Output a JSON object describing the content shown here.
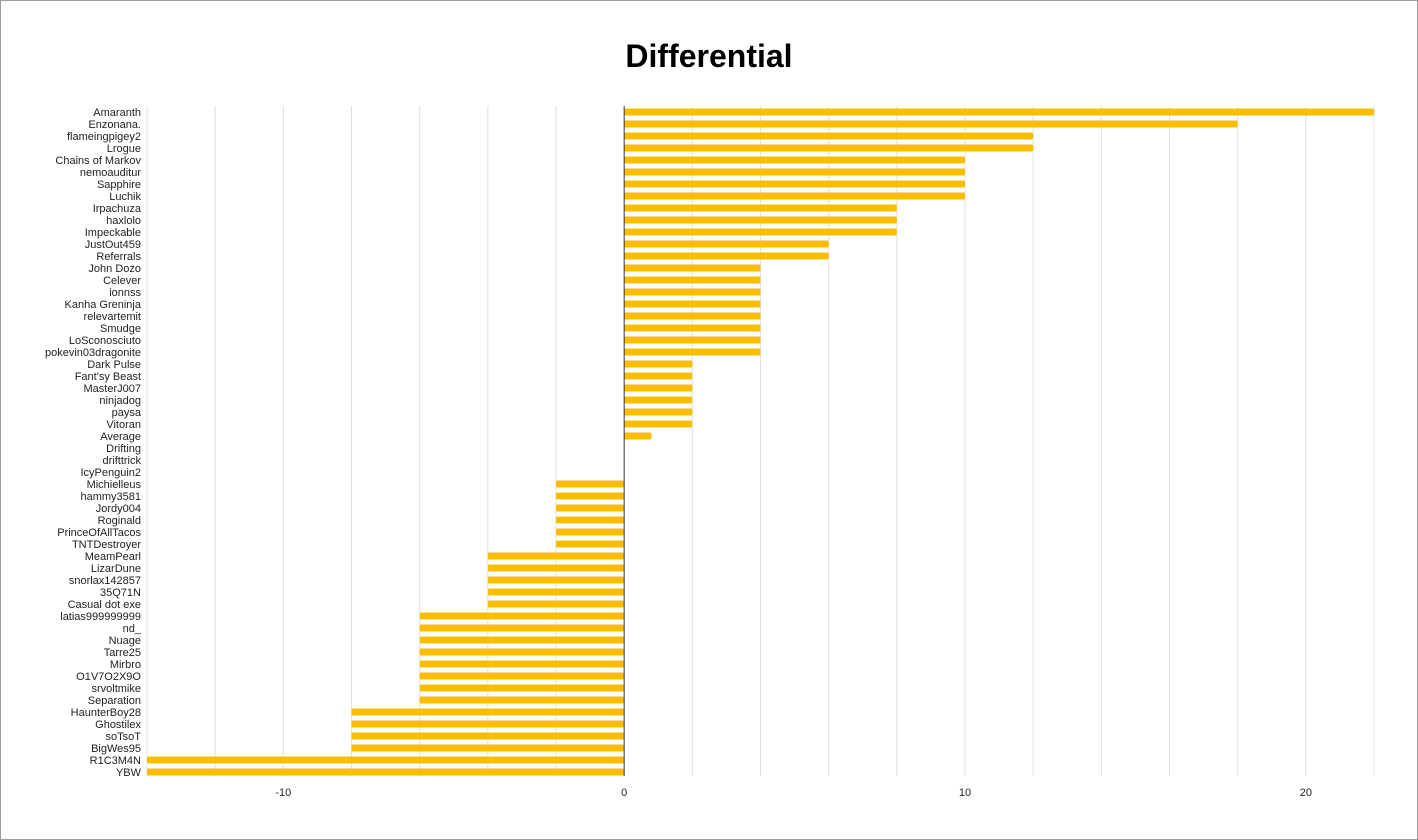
{
  "chart_data": {
    "type": "bar",
    "orientation": "horizontal",
    "title": "Differential",
    "xlabel": "",
    "ylabel": "",
    "xlim": [
      -14,
      22
    ],
    "x_ticks": [
      -10,
      0,
      10,
      20
    ],
    "gridlines_every": 2,
    "grid": true,
    "legend": "none",
    "bar_color": "#fbbc04",
    "categories": [
      "Amaranth",
      "Enzonana.",
      "flameingpigey2",
      "Lrogue",
      "Chains of Markov",
      "nemoauditur",
      "Sapphire",
      "Luchik",
      "Irpachuza",
      "haxlolo",
      "Impeckable",
      "JustOut459",
      "Referrals",
      "John Dozo",
      "Celever",
      "ionnss",
      "Kanha Greninja",
      "relevartemit",
      "Smudge",
      "LoSconosciuto",
      "pokevin03dragonite",
      "Dark Pulse",
      "Fant'sy Beast",
      "MasterJ007",
      "ninjadog",
      "paysa",
      "Vitoran",
      "Average",
      "Drifting",
      "drifttrick",
      "IcyPenguin2",
      "Michielleus",
      "hammy3581",
      "Jordy004",
      "Roginald",
      "PrinceOfAllTacos",
      "TNTDestroyer",
      "MeamPearl",
      "LizarDune",
      "snorlax142857",
      "35Q71N",
      "Casual dot exe",
      "latias999999999",
      "nd_",
      "Nuage",
      "Tarre25",
      "Mirbro",
      "O1V7O2X9O",
      "srvoltmike",
      "Separation",
      "HaunterBoy28",
      "Ghostilex",
      "soTsoT",
      "BigWes95",
      "R1C3M4N",
      "YBW"
    ],
    "values": [
      22,
      18,
      12,
      12,
      10,
      10,
      10,
      10,
      8,
      8,
      8,
      6,
      6,
      4,
      4,
      4,
      4,
      4,
      4,
      4,
      4,
      2,
      2,
      2,
      2,
      2,
      2,
      0.8,
      0,
      0,
      0,
      -2,
      -2,
      -2,
      -2,
      -2,
      -2,
      -4,
      -4,
      -4,
      -4,
      -4,
      -6,
      -6,
      -6,
      -6,
      -6,
      -6,
      -6,
      -6,
      -8,
      -8,
      -8,
      -8,
      -14,
      -14
    ]
  }
}
